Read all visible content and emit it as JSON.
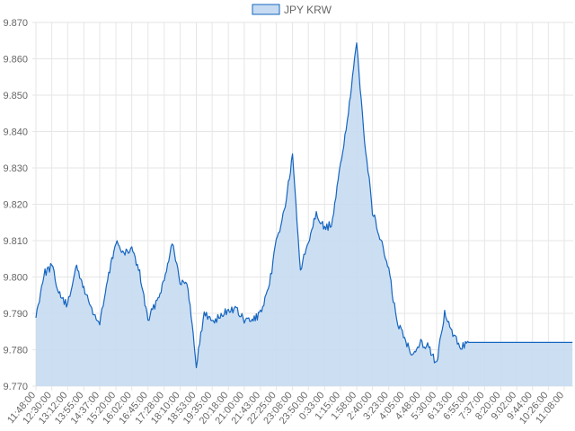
{
  "chart_data": {
    "type": "area",
    "title": "",
    "xlabel": "",
    "ylabel": "",
    "ylim": [
      9.77,
      9.87
    ],
    "y_ticks": [
      "9.770",
      "9.780",
      "9.790",
      "9.800",
      "9.810",
      "9.820",
      "9.830",
      "9.840",
      "9.850",
      "9.860",
      "9.870"
    ],
    "x_ticks": [
      "11:48:00",
      "12:30:00",
      "13:12:00",
      "13:55:00",
      "14:37:00",
      "15:20:00",
      "16:02:00",
      "16:45:00",
      "17:28:00",
      "18:10:00",
      "18:53:00",
      "19:35:00",
      "20:18:00",
      "21:00:00",
      "21:43:00",
      "22:25:00",
      "23:08:00",
      "23:50:00",
      "0:33:00",
      "1:15:00",
      "1:58:00",
      "2:40:00",
      "3:23:00",
      "4:05:00",
      "4:48:00",
      "5:30:00",
      "6:13:00",
      "6:55:00",
      "7:37:00",
      "8:20:00",
      "9:02:00",
      "9:44:00",
      "10:26:00",
      "11:08:00"
    ],
    "grid": true,
    "legend_position": "top-center",
    "series": [
      {
        "name": "JPY KRW",
        "line_color": "#1565c0",
        "fill_color": "#c6dbf1",
        "points": [
          [
            "11:48:00",
            9.789
          ],
          [
            "12:09:00",
            9.801
          ],
          [
            "12:30:00",
            9.803
          ],
          [
            "12:51:00",
            9.795
          ],
          [
            "13:12:00",
            9.792
          ],
          [
            "13:33:00",
            9.803
          ],
          [
            "13:55:00",
            9.797
          ],
          [
            "14:16:00",
            9.791
          ],
          [
            "14:37:00",
            9.787
          ],
          [
            "14:58:00",
            9.799
          ],
          [
            "15:20:00",
            9.81
          ],
          [
            "15:41:00",
            9.806
          ],
          [
            "16:02:00",
            9.808
          ],
          [
            "16:23:00",
            9.801
          ],
          [
            "16:45:00",
            9.788
          ],
          [
            "17:06:00",
            9.793
          ],
          [
            "17:28:00",
            9.799
          ],
          [
            "17:49:00",
            9.81
          ],
          [
            "18:10:00",
            9.799
          ],
          [
            "18:31:00",
            9.797
          ],
          [
            "18:53:00",
            9.776
          ],
          [
            "19:14:00",
            9.79
          ],
          [
            "19:35:00",
            9.788
          ],
          [
            "19:56:00",
            9.789
          ],
          [
            "20:18:00",
            9.791
          ],
          [
            "20:39:00",
            9.791
          ],
          [
            "21:00:00",
            9.788
          ],
          [
            "21:21:00",
            9.788
          ],
          [
            "21:43:00",
            9.79
          ],
          [
            "22:04:00",
            9.796
          ],
          [
            "22:25:00",
            9.81
          ],
          [
            "22:46:00",
            9.818
          ],
          [
            "23:08:00",
            9.833
          ],
          [
            "23:29:00",
            9.802
          ],
          [
            "23:50:00",
            9.81
          ],
          [
            "0:11:00",
            9.818
          ],
          [
            "0:33:00",
            9.813
          ],
          [
            "0:54:00",
            9.815
          ],
          [
            "1:15:00",
            9.831
          ],
          [
            "1:36:00",
            9.845
          ],
          [
            "1:58:00",
            9.864
          ],
          [
            "2:19:00",
            9.838
          ],
          [
            "2:40:00",
            9.818
          ],
          [
            "3:02:00",
            9.81
          ],
          [
            "3:23:00",
            9.802
          ],
          [
            "3:44:00",
            9.788
          ],
          [
            "4:05:00",
            9.783
          ],
          [
            "4:26:00",
            9.779
          ],
          [
            "4:48:00",
            9.782
          ],
          [
            "5:09:00",
            9.781
          ],
          [
            "5:30:00",
            9.776
          ],
          [
            "5:51:00",
            9.79
          ],
          [
            "6:13:00",
            9.784
          ],
          [
            "6:34:00",
            9.781
          ],
          [
            "6:55:00",
            9.782
          ],
          [
            "7:37:00",
            9.782
          ],
          [
            "8:20:00",
            9.782
          ],
          [
            "9:02:00",
            9.782
          ],
          [
            "9:44:00",
            9.782
          ],
          [
            "10:26:00",
            9.782
          ],
          [
            "11:08:00",
            9.782
          ],
          [
            "11:30:00",
            9.782
          ]
        ]
      }
    ]
  }
}
